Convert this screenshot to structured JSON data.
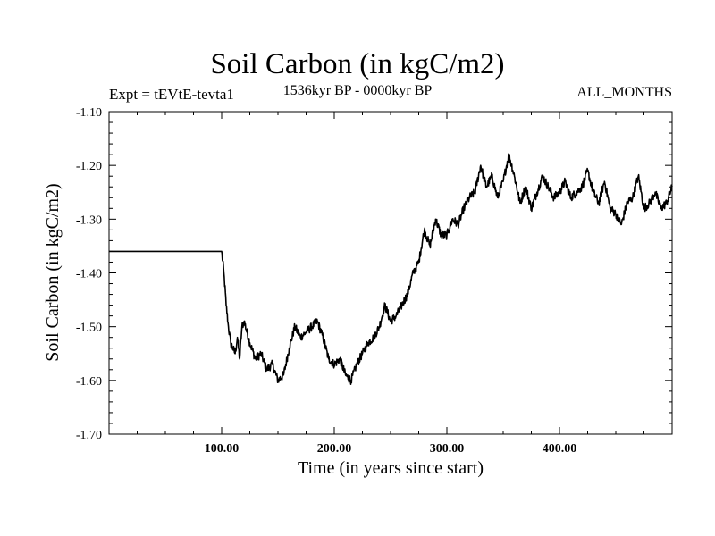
{
  "chart_data": {
    "type": "line",
    "title": "Soil Carbon (in kgC/m2)",
    "subtitle": "1536kyr BP - 0000kyr BP",
    "left_label": "Expt = tEVtE-tevta1",
    "right_label": "ALL_MONTHS",
    "xlabel": "Time (in years since start)",
    "ylabel": "Soil Carbon (in kgC/m2)",
    "xlim": [
      0,
      500
    ],
    "ylim": [
      -1.7,
      -1.1
    ],
    "x_ticks": [
      100,
      200,
      300,
      400
    ],
    "x_tick_labels": [
      "100.00",
      "200.00",
      "300.00",
      "400.00"
    ],
    "y_ticks": [
      -1.1,
      -1.2,
      -1.3,
      -1.4,
      -1.5,
      -1.6,
      -1.7
    ],
    "y_tick_labels": [
      "-1.10",
      "-1.20",
      "-1.30",
      "-1.40",
      "-1.50",
      "-1.60",
      "-1.70"
    ],
    "series": [
      {
        "name": "Soil Carbon",
        "x": [
          0,
          100,
          102,
          104,
          106,
          108,
          110,
          112,
          114,
          116,
          118,
          120,
          125,
          130,
          135,
          140,
          145,
          150,
          155,
          160,
          165,
          170,
          175,
          180,
          185,
          190,
          195,
          200,
          205,
          210,
          215,
          220,
          225,
          230,
          235,
          240,
          245,
          250,
          255,
          260,
          265,
          270,
          275,
          280,
          285,
          290,
          295,
          300,
          305,
          310,
          315,
          320,
          325,
          330,
          335,
          340,
          345,
          350,
          355,
          360,
          365,
          370,
          375,
          380,
          385,
          390,
          395,
          400,
          405,
          410,
          415,
          420,
          425,
          430,
          435,
          440,
          445,
          450,
          455,
          460,
          465,
          470,
          475,
          480,
          485,
          490,
          495,
          500
        ],
        "values": [
          -1.36,
          -1.36,
          -1.4,
          -1.46,
          -1.5,
          -1.53,
          -1.54,
          -1.55,
          -1.52,
          -1.56,
          -1.5,
          -1.49,
          -1.53,
          -1.56,
          -1.55,
          -1.58,
          -1.57,
          -1.6,
          -1.59,
          -1.54,
          -1.5,
          -1.52,
          -1.51,
          -1.5,
          -1.49,
          -1.52,
          -1.56,
          -1.57,
          -1.56,
          -1.59,
          -1.6,
          -1.57,
          -1.55,
          -1.53,
          -1.52,
          -1.5,
          -1.46,
          -1.49,
          -1.48,
          -1.46,
          -1.44,
          -1.4,
          -1.38,
          -1.32,
          -1.35,
          -1.3,
          -1.33,
          -1.33,
          -1.3,
          -1.31,
          -1.28,
          -1.26,
          -1.25,
          -1.2,
          -1.24,
          -1.22,
          -1.26,
          -1.23,
          -1.18,
          -1.22,
          -1.27,
          -1.24,
          -1.28,
          -1.25,
          -1.22,
          -1.24,
          -1.26,
          -1.25,
          -1.23,
          -1.26,
          -1.25,
          -1.24,
          -1.21,
          -1.25,
          -1.27,
          -1.23,
          -1.28,
          -1.29,
          -1.31,
          -1.27,
          -1.26,
          -1.22,
          -1.28,
          -1.27,
          -1.25,
          -1.28,
          -1.27,
          -1.24
        ]
      }
    ]
  }
}
